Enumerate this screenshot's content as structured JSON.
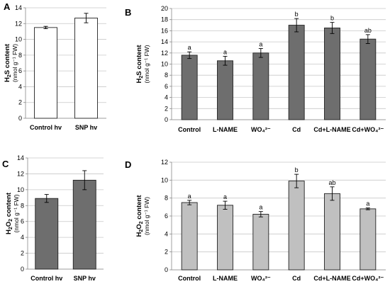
{
  "chart_data": [
    {
      "letter": "A",
      "type": "bar",
      "ylabel_main": "H",
      "ylabel_sub": "2",
      "ylabel_rest": "S content",
      "yunit": "(nmol g⁻¹ FW)",
      "ylim": [
        0,
        14
      ],
      "yticks": [
        0,
        2,
        4,
        6,
        8,
        10,
        12,
        14
      ],
      "categories": [
        "Control hv",
        "SNP hv"
      ],
      "values": [
        11.5,
        12.7
      ],
      "errors": [
        0.15,
        0.6
      ],
      "labels": [
        "",
        ""
      ],
      "bar_color": "#ffffff",
      "grid": true
    },
    {
      "letter": "B",
      "type": "bar",
      "ylabel_main": "H",
      "ylabel_sub": "2",
      "ylabel_rest": "S content",
      "yunit": "(nmol g⁻¹ FW)",
      "ylim": [
        0,
        20
      ],
      "yticks": [
        0,
        2,
        4,
        6,
        8,
        10,
        12,
        14,
        16,
        18,
        20
      ],
      "categories": [
        "Control",
        "L-NAME",
        "WO₄²⁻",
        "Cd",
        "Cd+L-NAME",
        "Cd+WO₄²⁻"
      ],
      "values": [
        11.6,
        10.6,
        12.0,
        17.0,
        16.5,
        14.5
      ],
      "errors": [
        0.6,
        0.8,
        0.8,
        1.2,
        1.0,
        0.8
      ],
      "labels": [
        "a",
        "a",
        "a",
        "b",
        "b",
        "ab"
      ],
      "bar_color": "#6e6e6e",
      "grid": true
    },
    {
      "letter": "C",
      "type": "bar",
      "ylabel_main": "H",
      "ylabel_sub": "2",
      "ylabel_rest": "O",
      "ylabel_sub2": "2",
      "ylabel_rest2": " content",
      "yunit": "(nmol g⁻¹ FW)",
      "ylim": [
        0,
        14
      ],
      "yticks": [
        0,
        2,
        4,
        6,
        8,
        10,
        12,
        14
      ],
      "categories": [
        "Control hv",
        "SNP hv"
      ],
      "values": [
        8.9,
        11.2
      ],
      "errors": [
        0.5,
        1.2
      ],
      "labels": [
        "",
        ""
      ],
      "bar_color": "#6e6e6e",
      "grid": true
    },
    {
      "letter": "D",
      "type": "bar",
      "ylabel_main": "H",
      "ylabel_sub": "2",
      "ylabel_rest": "O",
      "ylabel_sub2": "2",
      "ylabel_rest2": " content",
      "yunit": "(nmol g⁻¹ FW)",
      "ylim": [
        0,
        12
      ],
      "yticks": [
        0,
        2,
        4,
        6,
        8,
        10,
        12
      ],
      "categories": [
        "Control",
        "L-NAME",
        "WO₄²⁻",
        "Cd",
        "Cd+L-NAME",
        "Cd+WO₄²⁻"
      ],
      "values": [
        7.5,
        7.2,
        6.2,
        9.9,
        8.5,
        6.8
      ],
      "errors": [
        0.25,
        0.45,
        0.3,
        0.75,
        0.75,
        0.1
      ],
      "labels": [
        "a",
        "a",
        "a",
        "b",
        "ab",
        "a"
      ],
      "bar_color": "#c0c0c0",
      "grid": true
    }
  ]
}
